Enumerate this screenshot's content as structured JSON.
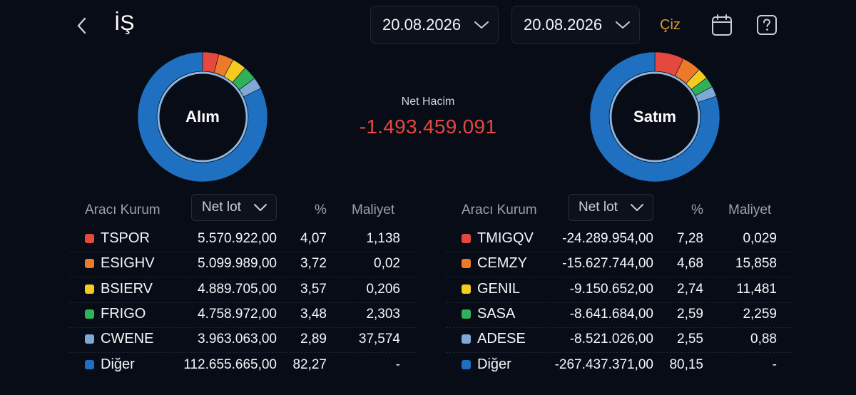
{
  "header": {
    "title": "İŞ",
    "date_from": "20.08.2026",
    "date_to": "20.08.2026",
    "draw_label": "Çiz",
    "icons": [
      "back-icon",
      "calendar-icon",
      "help-icon"
    ]
  },
  "colors": {
    "c1": "#e5483f",
    "c2": "#ec7a2a",
    "c3": "#f4cb20",
    "c4": "#2fb059",
    "c5": "#7fa8d6",
    "c6": "#1f70c1",
    "negative": "#e5483f",
    "accent": "#d79c37"
  },
  "buy": {
    "label": "Alım",
    "broker_header": "Aracı Kurum",
    "lot_header": "Net lot",
    "pct_header": "%",
    "cost_header": "Maliyet",
    "rows": [
      {
        "name": "TSPOR",
        "lot": "5.570.922,00",
        "pct": "4,07",
        "cost": "1,138",
        "color": "#e5483f",
        "share": 4.07
      },
      {
        "name": "ESIGHV",
        "lot": "5.099.989,00",
        "pct": "3,72",
        "cost": "0,02",
        "color": "#ec7a2a",
        "share": 3.72
      },
      {
        "name": "BSIERV",
        "lot": "4.889.705,00",
        "pct": "3,57",
        "cost": "0,206",
        "color": "#f4cb20",
        "share": 3.57
      },
      {
        "name": "FRIGO",
        "lot": "4.758.972,00",
        "pct": "3,48",
        "cost": "2,303",
        "color": "#2fb059",
        "share": 3.48
      },
      {
        "name": "CWENE",
        "lot": "3.963.063,00",
        "pct": "2,89",
        "cost": "37,574",
        "color": "#7fa8d6",
        "share": 2.89
      },
      {
        "name": "Diğer",
        "lot": "112.655.665,00",
        "pct": "82,27",
        "cost": "-",
        "color": "#1f70c1",
        "share": 82.27
      }
    ]
  },
  "net": {
    "label": "Net Hacim",
    "value": "-1.493.459.091"
  },
  "sell": {
    "label": "Satım",
    "broker_header": "Aracı Kurum",
    "lot_header": "Net lot",
    "pct_header": "%",
    "cost_header": "Maliyet",
    "rows": [
      {
        "name": "TMIGQV",
        "lot": "-24.289.954,00",
        "pct": "7,28",
        "cost": "0,029",
        "color": "#e5483f",
        "share": 7.28
      },
      {
        "name": "CEMZY",
        "lot": "-15.627.744,00",
        "pct": "4,68",
        "cost": "15,858",
        "color": "#ec7a2a",
        "share": 4.68
      },
      {
        "name": "GENIL",
        "lot": "-9.150.652,00",
        "pct": "2,74",
        "cost": "11,481",
        "color": "#f4cb20",
        "share": 2.74
      },
      {
        "name": "SASA",
        "lot": "-8.641.684,00",
        "pct": "2,59",
        "cost": "2,259",
        "color": "#2fb059",
        "share": 2.59
      },
      {
        "name": "ADESE",
        "lot": "-8.521.026,00",
        "pct": "2,55",
        "cost": "0,88",
        "color": "#7fa8d6",
        "share": 2.55
      },
      {
        "name": "Diğer",
        "lot": "-267.437.371,00",
        "pct": "80,15",
        "cost": "-",
        "color": "#1f70c1",
        "share": 80.15
      }
    ]
  }
}
